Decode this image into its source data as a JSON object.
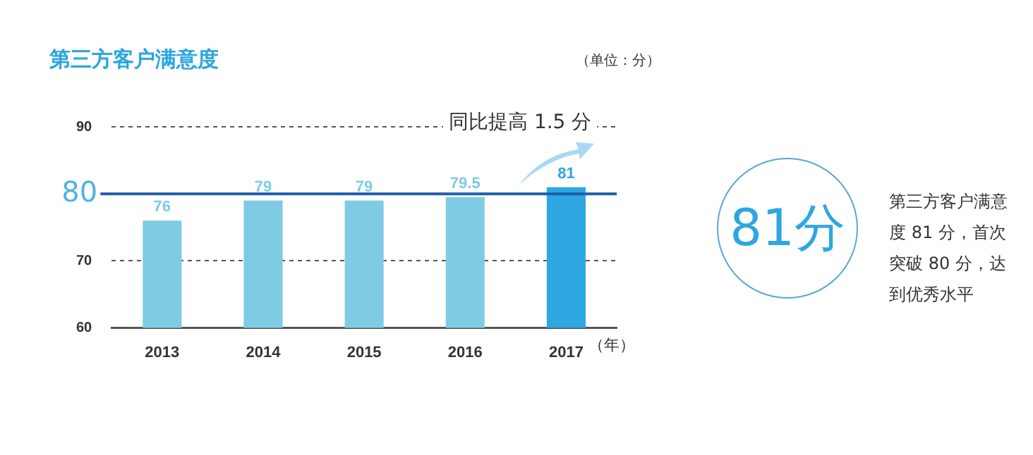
{
  "chart_data": {
    "type": "bar",
    "title": "第三方客户满意度",
    "xlabel": "（年）",
    "categories": [
      "2013",
      "2014",
      "2015",
      "2016",
      "2017"
    ],
    "values": [
      76,
      79,
      79,
      79.5,
      81
    ],
    "colors": [
      "#7ecce4",
      "#7ecce4",
      "#7ecce4",
      "#7ecce4",
      "#2ea6e0"
    ],
    "ylim": [
      60,
      90
    ],
    "yticks": [
      60,
      70,
      90
    ],
    "grid": "y",
    "line_style": "dashed",
    "data_labels": true,
    "ref_lines": [
      {
        "axis": "y",
        "value": 80,
        "label": "80",
        "color": "#1f5fa8"
      }
    ],
    "annotations": [
      "（单位：分）",
      "同比提高 1.5 分",
      "81分",
      "第三方客户满意度 81 分，首次突破 80 分，达到优秀水平"
    ]
  }
}
